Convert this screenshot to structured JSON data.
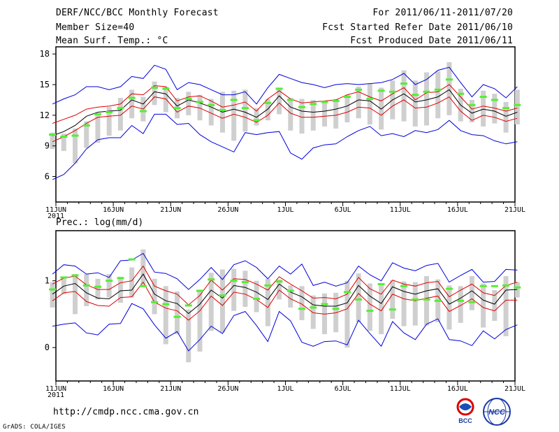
{
  "header": {
    "title": "DERF/NCC/BCC Monthly Forecast",
    "member_size": "Member Size=40",
    "variable": "Mean Surf. Temp.: °C",
    "period": "For 2011/06/11-2011/07/20",
    "start_date": "Fcst Started Refer Date 2011/06/10",
    "produced_date": "Fcst Produced Date 2011/06/11"
  },
  "footer": {
    "url": "http://cmdp.ncc.cma.gov.cn",
    "credit": "GrADS: COLA/IGES",
    "logo_left": "BCC",
    "logo_right": "NCC"
  },
  "colors": {
    "max_min": "#0000dd",
    "spread": "#dd0000",
    "mean": "#000000",
    "median": "#55ee33",
    "box": "#cfcfcf"
  },
  "chart_data": [
    {
      "type": "line",
      "name": "temperature",
      "title": "",
      "ylabel": "Mean Surf. Temp.: °C",
      "ylim": [
        3.5,
        18.7
      ],
      "yticks": [
        6,
        9,
        12,
        15,
        18
      ],
      "xlim": [
        0,
        40
      ],
      "xticks": [
        {
          "x": 0,
          "label": "11JUN"
        },
        {
          "x": 5,
          "label": "16JUN"
        },
        {
          "x": 10,
          "label": "21JUN"
        },
        {
          "x": 15,
          "label": "26JUN"
        },
        {
          "x": 20,
          "label": "1JUL"
        },
        {
          "x": 25,
          "label": "6JUL"
        },
        {
          "x": 30,
          "label": "11JUL"
        },
        {
          "x": 35,
          "label": "16JUL"
        },
        {
          "x": 40,
          "label": "21JUL"
        }
      ],
      "year_label": "2011",
      "series": [
        {
          "name": "max",
          "color": "#0000dd",
          "values": [
            13.1,
            13.6,
            14.0,
            14.8,
            14.8,
            14.5,
            14.8,
            15.8,
            15.6,
            16.9,
            16.5,
            14.5,
            15.2,
            15.0,
            14.5,
            14.0,
            14.0,
            14.3,
            13.1,
            14.7,
            16.0,
            15.6,
            15.2,
            15.0,
            14.7,
            15.0,
            15.1,
            15.0,
            15.1,
            15.2,
            15.5,
            16.1,
            15.0,
            15.5,
            16.4,
            16.7,
            15.2,
            13.8,
            15.0,
            14.6,
            13.7,
            14.8
          ]
        },
        {
          "name": "upper",
          "color": "#dd0000",
          "values": [
            11.2,
            11.6,
            12.0,
            12.6,
            12.8,
            12.9,
            13.1,
            14.1,
            14.0,
            14.9,
            14.8,
            13.4,
            13.8,
            13.9,
            13.4,
            12.8,
            13.0,
            13.3,
            12.4,
            13.6,
            14.4,
            13.6,
            13.2,
            13.3,
            13.4,
            13.5,
            14.0,
            14.3,
            13.8,
            13.4,
            14.1,
            14.7,
            13.5,
            14.2,
            14.3,
            15.0,
            13.8,
            12.6,
            12.9,
            12.7,
            12.4,
            12.7
          ]
        },
        {
          "name": "mean",
          "color": "#000000",
          "values": [
            10.0,
            10.4,
            11.0,
            11.9,
            12.3,
            12.4,
            12.5,
            13.5,
            13.1,
            14.3,
            14.1,
            12.9,
            13.5,
            13.2,
            12.8,
            12.3,
            12.6,
            12.3,
            11.8,
            12.6,
            13.9,
            12.8,
            12.4,
            12.3,
            12.4,
            12.6,
            12.9,
            13.5,
            13.4,
            12.6,
            13.5,
            14.1,
            13.3,
            13.5,
            13.8,
            14.5,
            13.0,
            12.2,
            12.6,
            12.4,
            11.9,
            12.3
          ]
        },
        {
          "name": "lower",
          "color": "#dd0000",
          "values": [
            9.4,
            9.9,
            10.5,
            11.2,
            11.8,
            11.9,
            12.0,
            12.9,
            12.6,
            13.8,
            13.6,
            12.3,
            12.9,
            12.7,
            12.2,
            11.7,
            12.1,
            11.8,
            11.3,
            12.0,
            13.2,
            12.2,
            11.8,
            11.8,
            11.9,
            12.0,
            12.3,
            12.8,
            12.7,
            12.0,
            12.9,
            13.5,
            12.7,
            12.8,
            13.2,
            13.8,
            12.4,
            11.5,
            12.0,
            11.8,
            11.4,
            11.7
          ]
        },
        {
          "name": "min",
          "color": "#0000dd",
          "values": [
            5.7,
            6.2,
            7.3,
            8.7,
            9.6,
            9.8,
            9.8,
            11.0,
            10.2,
            12.1,
            12.1,
            11.1,
            11.2,
            10.1,
            9.4,
            8.9,
            8.4,
            10.3,
            10.1,
            10.3,
            10.4,
            8.3,
            7.7,
            8.8,
            9.1,
            9.2,
            9.9,
            10.5,
            10.9,
            10.0,
            10.2,
            9.9,
            10.5,
            10.3,
            10.6,
            11.5,
            10.5,
            10.1,
            10.0,
            9.5,
            9.2,
            9.4
          ]
        }
      ],
      "boxes": {
        "low": [
          8.7,
          8.5,
          7.3,
          8.8,
          9.3,
          10.0,
          10.5,
          11.7,
          11.4,
          13.0,
          12.3,
          11.7,
          12.0,
          11.5,
          11.0,
          10.3,
          9.5,
          10.4,
          11.0,
          11.5,
          12.1,
          10.5,
          10.2,
          10.5,
          10.9,
          10.7,
          11.3,
          11.7,
          11.1,
          10.6,
          11.6,
          11.4,
          10.9,
          11.0,
          11.7,
          12.0,
          11.4,
          11.3,
          10.9,
          11.2,
          10.3,
          11.1
        ],
        "high": [
          10.3,
          10.2,
          10.7,
          11.4,
          12.0,
          12.8,
          13.7,
          14.5,
          13.8,
          15.3,
          14.8,
          13.7,
          14.3,
          14.0,
          13.6,
          14.3,
          14.4,
          14.5,
          12.7,
          13.6,
          14.7,
          13.7,
          13.6,
          13.5,
          13.3,
          13.6,
          14.0,
          14.8,
          15.1,
          14.7,
          15.4,
          16.4,
          15.4,
          16.2,
          16.3,
          17.2,
          14.6,
          13.5,
          14.4,
          14.1,
          13.3,
          14.5
        ],
        "median": [
          10.1,
          9.9,
          10.0,
          11.0,
          12.1,
          12.3,
          12.7,
          13.7,
          12.4,
          14.7,
          14.6,
          12.7,
          13.6,
          13.3,
          13.0,
          12.5,
          13.5,
          12.7,
          11.5,
          13.2,
          14.6,
          13.5,
          12.8,
          13.1,
          13.3,
          13.4,
          13.8,
          14.5,
          13.6,
          14.4,
          14.3,
          15.1,
          14.0,
          14.3,
          14.5,
          15.5,
          14.1,
          13.0,
          13.8,
          13.5,
          12.7,
          13.0
        ]
      }
    },
    {
      "type": "line",
      "name": "precipitation",
      "title": "",
      "ylabel": "Prec.: log(mm/d)",
      "ylim": [
        -0.5,
        1.75
      ],
      "yticks": [
        0,
        1
      ],
      "xlim": [
        0,
        40
      ],
      "xticks": [
        {
          "x": 0,
          "label": "11JUN"
        },
        {
          "x": 5,
          "label": "16JUN"
        },
        {
          "x": 10,
          "label": "21JUN"
        },
        {
          "x": 15,
          "label": "26JUN"
        },
        {
          "x": 20,
          "label": "1JUL"
        },
        {
          "x": 25,
          "label": "6JUL"
        },
        {
          "x": 30,
          "label": "11JUL"
        },
        {
          "x": 35,
          "label": "16JUL"
        },
        {
          "x": 40,
          "label": "21JUL"
        }
      ],
      "year_label": "2011",
      "series": [
        {
          "name": "max",
          "color": "#0000dd",
          "values": [
            1.1,
            1.24,
            1.22,
            1.1,
            1.12,
            1.05,
            1.3,
            1.31,
            1.41,
            1.13,
            1.11,
            1.03,
            0.87,
            1.02,
            1.2,
            1.02,
            1.24,
            1.3,
            1.2,
            1.03,
            1.22,
            1.1,
            1.25,
            0.93,
            0.98,
            0.92,
            0.97,
            1.22,
            1.09,
            1.0,
            1.27,
            1.19,
            1.15,
            1.23,
            1.26,
            0.98,
            1.08,
            1.17,
            0.98,
            0.99,
            1.17,
            1.16
          ]
        },
        {
          "name": "upper",
          "color": "#dd0000",
          "values": [
            0.95,
            1.04,
            1.07,
            0.94,
            0.87,
            0.87,
            0.97,
            1.0,
            1.22,
            0.92,
            0.85,
            0.8,
            0.64,
            0.78,
            1.01,
            0.86,
            1.03,
            1.02,
            0.95,
            0.86,
            1.06,
            0.95,
            0.85,
            0.74,
            0.75,
            0.73,
            0.8,
            1.05,
            0.88,
            0.8,
            1.01,
            0.95,
            0.92,
            0.97,
            0.99,
            0.76,
            0.86,
            0.95,
            0.82,
            0.78,
            0.93,
            0.98
          ]
        },
        {
          "name": "mean",
          "color": "#000000",
          "values": [
            0.8,
            0.92,
            0.96,
            0.82,
            0.74,
            0.73,
            0.85,
            0.86,
            1.1,
            0.8,
            0.7,
            0.66,
            0.51,
            0.65,
            0.86,
            0.74,
            0.93,
            0.9,
            0.83,
            0.72,
            0.95,
            0.83,
            0.76,
            0.64,
            0.62,
            0.62,
            0.67,
            0.93,
            0.77,
            0.66,
            0.91,
            0.84,
            0.8,
            0.85,
            0.88,
            0.65,
            0.74,
            0.85,
            0.71,
            0.65,
            0.86,
            0.87
          ]
        },
        {
          "name": "lower",
          "color": "#dd0000",
          "values": [
            0.7,
            0.82,
            0.84,
            0.69,
            0.63,
            0.62,
            0.75,
            0.76,
            0.98,
            0.68,
            0.59,
            0.55,
            0.41,
            0.55,
            0.77,
            0.63,
            0.83,
            0.8,
            0.72,
            0.6,
            0.86,
            0.73,
            0.65,
            0.52,
            0.5,
            0.52,
            0.58,
            0.81,
            0.65,
            0.55,
            0.8,
            0.73,
            0.7,
            0.74,
            0.77,
            0.54,
            0.63,
            0.73,
            0.6,
            0.55,
            0.71,
            0.71
          ]
        },
        {
          "name": "min",
          "color": "#0000dd",
          "values": [
            0.32,
            0.35,
            0.37,
            0.22,
            0.19,
            0.35,
            0.36,
            0.66,
            0.58,
            0.34,
            0.14,
            0.24,
            -0.05,
            0.12,
            0.32,
            0.21,
            0.48,
            0.54,
            0.33,
            0.09,
            0.54,
            0.4,
            0.08,
            0.02,
            0.09,
            0.1,
            0.04,
            0.41,
            0.21,
            0.02,
            0.39,
            0.22,
            0.12,
            0.35,
            0.43,
            0.12,
            0.1,
            0.03,
            0.25,
            0.13,
            0.27,
            0.34
          ]
        }
      ],
      "boxes": {
        "low": [
          0.6,
          0.8,
          0.5,
          0.62,
          0.72,
          0.75,
          0.67,
          0.75,
          0.94,
          0.5,
          0.05,
          0.2,
          -0.22,
          -0.06,
          0.25,
          0.23,
          0.55,
          0.61,
          0.53,
          0.32,
          0.72,
          0.6,
          0.41,
          0.28,
          0.2,
          0.23,
          0.0,
          0.38,
          0.25,
          0.2,
          0.43,
          0.32,
          0.33,
          0.33,
          0.38,
          0.27,
          0.37,
          0.56,
          0.3,
          0.4,
          0.17,
          0.75
        ],
        "high": [
          0.98,
          1.05,
          1.1,
          1.1,
          1.03,
          1.1,
          1.06,
          1.2,
          1.47,
          1.03,
          0.92,
          0.84,
          0.57,
          0.84,
          1.12,
          1.17,
          1.18,
          1.15,
          1.0,
          1.03,
          1.02,
          0.93,
          0.92,
          0.78,
          0.81,
          0.82,
          1.0,
          1.11,
          0.96,
          0.96,
          1.01,
          0.99,
          0.98,
          1.07,
          1.02,
          0.93,
          0.92,
          1.07,
          0.96,
          0.86,
          1.07,
          0.98
        ],
        "median": [
          0.87,
          1.05,
          1.08,
          0.93,
          0.91,
          1.0,
          1.04,
          1.32,
          0.92,
          0.68,
          0.65,
          0.46,
          0.63,
          0.85,
          1.02,
          0.78,
          1.0,
          0.98,
          0.73,
          0.93,
          0.99,
          0.85,
          0.58,
          0.6,
          0.65,
          0.58,
          0.83,
          0.72,
          0.55,
          0.95,
          0.57,
          0.92,
          0.72,
          0.72,
          0.7,
          0.88,
          0.7,
          0.68,
          0.92,
          0.92,
          0.93,
          0.9
        ]
      }
    }
  ]
}
